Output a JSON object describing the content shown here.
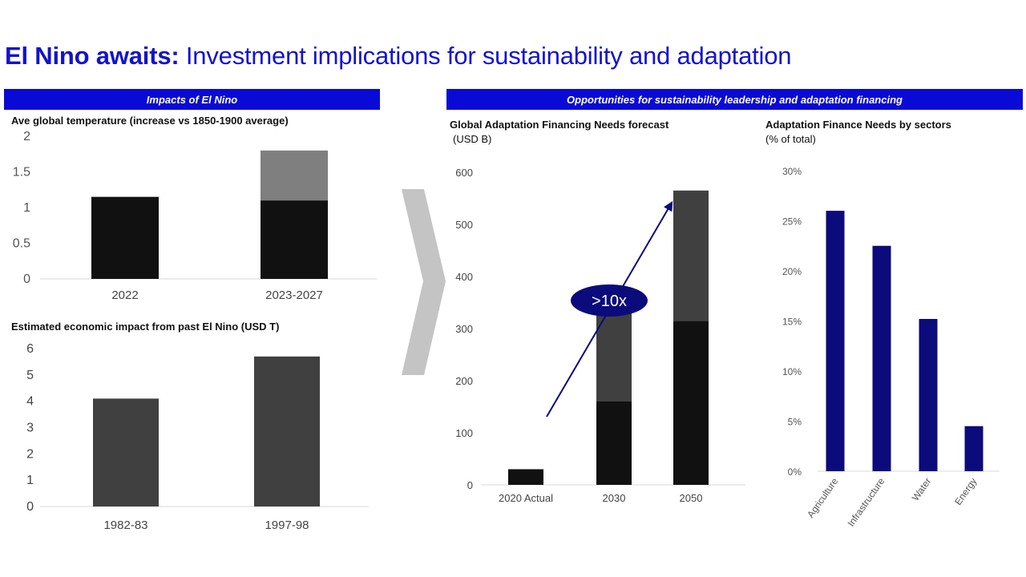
{
  "page": {
    "title_bold": "El Nino awaits:",
    "title_rest": " Investment implications for sustainability and adaptation"
  },
  "colors": {
    "title": "#1313cc",
    "band": "#0a0ad6",
    "navy": "#0b0b7c",
    "dark_bar": "#111111",
    "mid_bar": "#404040",
    "gray_bar": "#7f7f7f",
    "callout": "#0b0b7c",
    "chevron": "#c4c4c4"
  },
  "left_section": {
    "header": "Impacts of El Nino"
  },
  "right_section": {
    "header": "Opportunities for sustainability leadership and adaptation financing"
  },
  "callout": {
    "label": ">10x"
  },
  "chart_data": [
    {
      "id": "temperature",
      "type": "bar",
      "stacked": true,
      "title": "Ave global temperature (increase vs 1850-1900 average)",
      "categories": [
        "2022",
        "2023-2027"
      ],
      "series": [
        {
          "values": [
            1.15,
            1.1
          ],
          "color": "#111111"
        },
        {
          "values": [
            0,
            0.7
          ],
          "color": "#7f7f7f"
        }
      ],
      "ylim": [
        0,
        2
      ],
      "yticks": [
        0,
        0.5,
        1,
        1.5,
        2
      ],
      "ytick_labels": [
        "0",
        "0.5",
        "1",
        "1.5",
        "2"
      ],
      "grid": false
    },
    {
      "id": "economic",
      "type": "bar",
      "title": "Estimated economic impact from past El Nino (USD T)",
      "categories": [
        "1982-83",
        "1997-98"
      ],
      "values": [
        4.1,
        5.7
      ],
      "color": "#404040",
      "ylim": [
        0,
        6
      ],
      "yticks": [
        0,
        1,
        2,
        3,
        4,
        5,
        6
      ],
      "ytick_labels": [
        "0",
        "1",
        "2",
        "3",
        "4",
        "5",
        "6"
      ],
      "grid": false
    },
    {
      "id": "adaptation",
      "type": "bar",
      "stacked": true,
      "title": "Global Adaptation Financing Needs forecast",
      "subtitle": "(USD B)",
      "categories": [
        "2020 Actual",
        "2030",
        "2050"
      ],
      "series": [
        {
          "values": [
            30,
            160,
            315
          ],
          "color": "#111111"
        },
        {
          "values": [
            0,
            180,
            250
          ],
          "color": "#404040"
        }
      ],
      "ylim": [
        0,
        600
      ],
      "yticks": [
        0,
        100,
        200,
        300,
        400,
        500,
        600
      ],
      "ytick_labels": [
        "0",
        "100",
        "200",
        "300",
        "400",
        "500",
        "600"
      ],
      "grid": false,
      "annotations": [
        ">10x"
      ]
    },
    {
      "id": "sectors",
      "type": "bar",
      "title": "Adaptation Finance Needs by sectors",
      "subtitle": "(% of total)",
      "categories": [
        "Agriculture",
        "Infrastructure",
        "Water",
        "Energy"
      ],
      "values": [
        26,
        22.5,
        15.2,
        4.5
      ],
      "color": "#0b0b7c",
      "ylim": [
        0,
        30
      ],
      "yticks": [
        0,
        5,
        10,
        15,
        20,
        25,
        30
      ],
      "ytick_labels": [
        "0%",
        "5%",
        "10%",
        "15%",
        "20%",
        "25%",
        "30%"
      ],
      "grid": false
    }
  ]
}
